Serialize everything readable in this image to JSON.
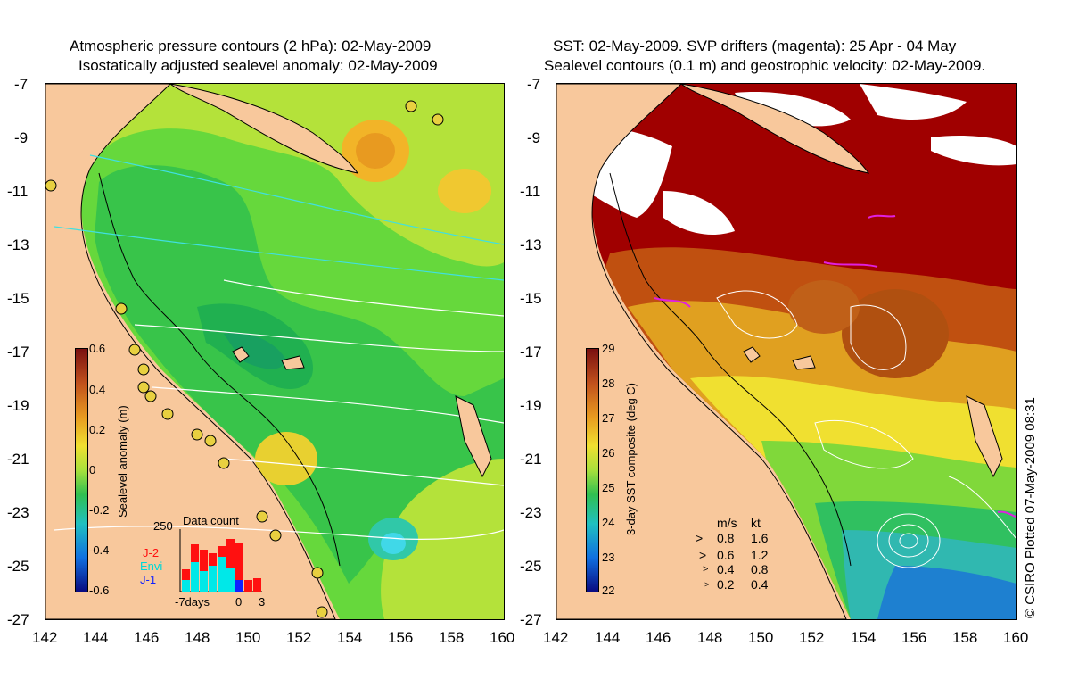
{
  "left_panel": {
    "title_line1": "Atmospheric pressure contours (2 hPa): 02-May-2009",
    "title_line2": "Isostatically adjusted sealevel anomaly: 02-May-2009",
    "colorbar_label": "Sealevel anomaly (m)",
    "colorbar_ticks": [
      "0.6",
      "0.4",
      "0.2",
      "0",
      "-0.2",
      "-0.4",
      "-0.6"
    ],
    "data_count": {
      "title": "Data count",
      "max_label": "250",
      "series": [
        {
          "name": "J-2",
          "color": "#ff1010"
        },
        {
          "name": "Envi",
          "color": "#00e8e8"
        },
        {
          "name": "J-1",
          "color": "#1020ff"
        }
      ],
      "x_labels": [
        "-7days",
        "0",
        "3"
      ]
    }
  },
  "right_panel": {
    "title_line1": "SST: 02-May-2009. SVP drifters (magenta): 25 Apr - 04 May",
    "title_line2": "Sealevel contours (0.1 m) and geostrophic velocity: 02-May-2009.",
    "colorbar_label": "3-day SST composite (deg C)",
    "colorbar_ticks": [
      "29",
      "28",
      "27",
      "26",
      "25",
      "24",
      "23",
      "22"
    ],
    "velocity_legend": {
      "header_ms": "m/s",
      "header_kt": "kt",
      "rows": [
        {
          "ms": "0.8",
          "kt": "1.6"
        },
        {
          "ms": "0.6",
          "kt": "1.2"
        },
        {
          "ms": "0.4",
          "kt": "0.8"
        },
        {
          "ms": "0.2",
          "kt": "0.4"
        }
      ]
    }
  },
  "axes": {
    "lat_ticks": [
      "-7",
      "-9",
      "-11",
      "-13",
      "-15",
      "-17",
      "-19",
      "-21",
      "-23",
      "-25",
      "-27"
    ],
    "lon_ticks": [
      "142",
      "144",
      "146",
      "148",
      "150",
      "152",
      "154",
      "156",
      "158",
      "160"
    ]
  },
  "credit": "© CSIRO Plotted 07-May-2009 08:31",
  "colors": {
    "land": "#f8c89c",
    "coast": "#000000",
    "pressure_contour": "#ffffff",
    "cyan_contour": "#40e0e0"
  }
}
